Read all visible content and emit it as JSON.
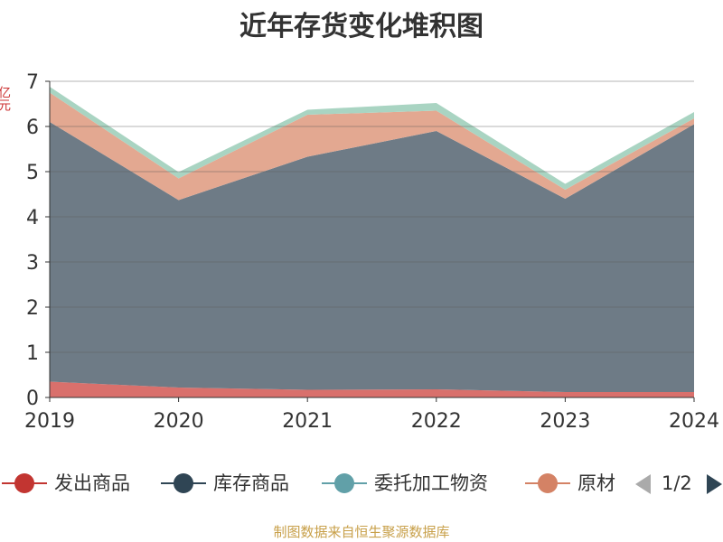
{
  "title": "近年存货变化堆积图",
  "y_unit": "亿元",
  "legend": {
    "items": [
      {
        "label": "发出商品",
        "color": "#c23531"
      },
      {
        "label": "库存商品",
        "color": "#2f4554"
      },
      {
        "label": "委托加工物资",
        "color": "#61a0a8"
      },
      {
        "label": "原材",
        "color": "#d48265"
      }
    ],
    "page_text": "1/2"
  },
  "source": "制图数据来自恒生聚源数据库",
  "chart_data": {
    "type": "area",
    "stacked": true,
    "title": "近年存货变化堆积图",
    "x": [
      "2019",
      "2020",
      "2021",
      "2022",
      "2023",
      "2024"
    ],
    "ylim": [
      0,
      7
    ],
    "yticks": [
      "0",
      "1",
      "2",
      "3",
      "4",
      "5",
      "6",
      "7"
    ],
    "grid": true,
    "legend_position": "bottom",
    "series": [
      {
        "name": "发出商品",
        "color": "#d9706c",
        "values": [
          0.35,
          0.22,
          0.17,
          0.18,
          0.12,
          0.12
        ]
      },
      {
        "name": "库存商品",
        "color": "#6e7b86",
        "values": [
          5.75,
          4.15,
          5.16,
          5.72,
          4.28,
          5.93
        ]
      },
      {
        "name": "原材料",
        "color": "#e3a891",
        "values": [
          0.65,
          0.48,
          0.93,
          0.45,
          0.2,
          0.13
        ]
      },
      {
        "name": "委托加工物资",
        "color": "#a9d4c2",
        "values": [
          0.13,
          0.14,
          0.11,
          0.17,
          0.13,
          0.14
        ]
      }
    ]
  }
}
